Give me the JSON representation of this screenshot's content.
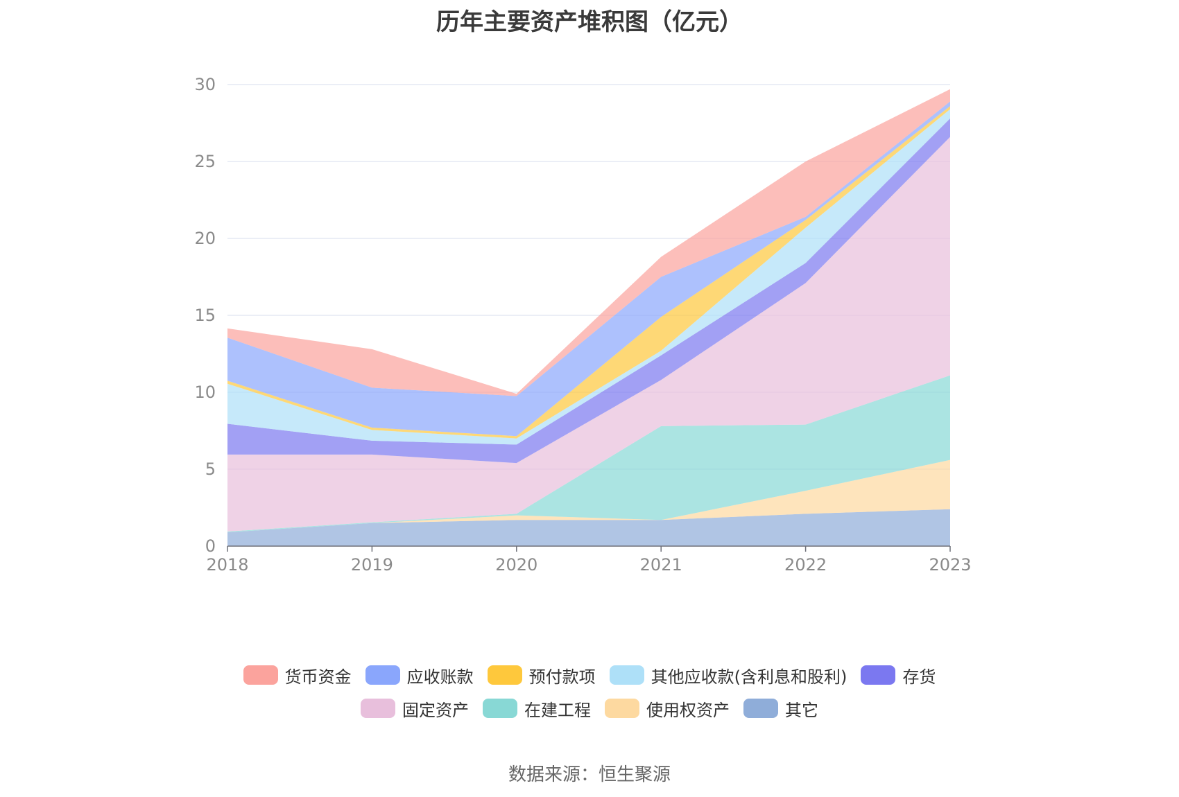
{
  "chart_data": {
    "type": "area",
    "stacked": true,
    "title": "历年主要资产堆积图（亿元）",
    "x": [
      "2018",
      "2019",
      "2020",
      "2021",
      "2022",
      "2023"
    ],
    "ylim": [
      0,
      30
    ],
    "yticks": [
      "0",
      "5",
      "10",
      "15",
      "20",
      "25",
      "30"
    ],
    "grid": true,
    "legend_position": "bottom",
    "series": [
      {
        "name": "其它",
        "color": "#8fadd9",
        "values": [
          0.9,
          1.5,
          1.7,
          1.7,
          2.1,
          2.4
        ]
      },
      {
        "name": "使用权资产",
        "color": "#fdd9a0",
        "values": [
          0.0,
          0.0,
          0.3,
          0.0,
          1.5,
          3.2
        ]
      },
      {
        "name": "在建工程",
        "color": "#88d8d5",
        "values": [
          0.05,
          0.05,
          0.1,
          6.1,
          4.3,
          5.5
        ]
      },
      {
        "name": "固定资产",
        "color": "#e8bfdc",
        "values": [
          5.0,
          4.4,
          3.3,
          3.0,
          9.2,
          15.5
        ]
      },
      {
        "name": "存货",
        "color": "#7b78f0",
        "values": [
          2.0,
          0.9,
          1.2,
          1.6,
          1.3,
          1.2
        ]
      },
      {
        "name": "其他应收款(含利息和股利)",
        "color": "#aee0f8",
        "values": [
          2.6,
          0.7,
          0.4,
          0.3,
          2.3,
          0.6
        ]
      },
      {
        "name": "预付款项",
        "color": "#fec83c",
        "values": [
          0.2,
          0.15,
          0.15,
          2.2,
          0.5,
          0.2
        ]
      },
      {
        "name": "应收账款",
        "color": "#8aa6fc",
        "values": [
          2.8,
          2.6,
          2.6,
          2.6,
          0.2,
          0.3
        ]
      },
      {
        "name": "货币资金",
        "color": "#fba39d",
        "values": [
          0.6,
          2.5,
          0.15,
          1.3,
          3.6,
          0.8
        ]
      }
    ]
  },
  "legend": {
    "row1": [
      {
        "label": "货币资金",
        "color": "#fba39d"
      },
      {
        "label": "应收账款",
        "color": "#8aa6fc"
      },
      {
        "label": "预付款项",
        "color": "#fec83c"
      },
      {
        "label": "其他应收款(含利息和股利)",
        "color": "#aee0f8"
      },
      {
        "label": "存货",
        "color": "#7b78f0"
      }
    ],
    "row2": [
      {
        "label": "固定资产",
        "color": "#e8bfdc"
      },
      {
        "label": "在建工程",
        "color": "#88d8d5"
      },
      {
        "label": "使用权资产",
        "color": "#fdd9a0"
      },
      {
        "label": "其它",
        "color": "#8fadd9"
      }
    ]
  },
  "source": "数据来源：恒生聚源"
}
